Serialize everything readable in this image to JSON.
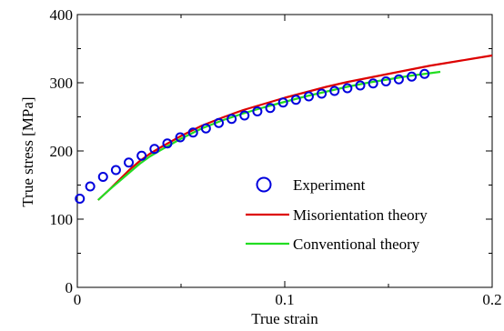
{
  "chart_data": {
    "type": "line",
    "title": "",
    "xlabel": "True strain",
    "ylabel": "True stress [MPa]",
    "xlim": [
      0,
      0.2
    ],
    "ylim": [
      0,
      400
    ],
    "x_ticks": [
      0,
      0.1,
      0.2
    ],
    "x_tick_labels": [
      "0",
      "0.1",
      "0.2"
    ],
    "y_ticks": [
      0,
      100,
      200,
      300,
      400
    ],
    "y_tick_labels": [
      "0",
      "100",
      "200",
      "300",
      "400"
    ],
    "grid": false,
    "legend_placement": "lower-right",
    "series": [
      {
        "name": "Experiment",
        "kind": "scatter",
        "marker": "open-circle",
        "color": "#0000dd",
        "x": [
          0.0012,
          0.0062,
          0.0124,
          0.0186,
          0.0248,
          0.031,
          0.0372,
          0.0434,
          0.0496,
          0.0558,
          0.062,
          0.0682,
          0.0744,
          0.0806,
          0.0868,
          0.093,
          0.0992,
          0.1054,
          0.1116,
          0.1178,
          0.124,
          0.1302,
          0.1364,
          0.1426,
          0.1488,
          0.155,
          0.1612,
          0.1674
        ],
        "y": [
          130,
          148,
          162,
          172,
          183,
          193,
          203,
          211,
          220,
          227,
          233,
          241,
          247,
          252,
          258,
          263,
          271,
          275,
          280,
          284,
          288,
          292,
          296,
          299,
          302,
          305,
          309,
          313
        ]
      },
      {
        "name": "Misorientation theory",
        "kind": "line",
        "color": "#dd0000",
        "x": [
          0.01,
          0.015,
          0.02,
          0.025,
          0.03,
          0.035,
          0.04,
          0.05,
          0.06,
          0.07,
          0.08,
          0.09,
          0.1,
          0.11,
          0.12,
          0.13,
          0.14,
          0.15,
          0.16,
          0.17,
          0.18,
          0.19,
          0.2
        ],
        "y": [
          128,
          142,
          157,
          172,
          185,
          196,
          205,
          222,
          237,
          249,
          260,
          269,
          278,
          286,
          294,
          301,
          307,
          313,
          319,
          325,
          330,
          335,
          340
        ]
      },
      {
        "name": "Conventional theory",
        "kind": "line",
        "color": "#22dd22",
        "x": [
          0.01,
          0.015,
          0.02,
          0.025,
          0.03,
          0.035,
          0.04,
          0.05,
          0.06,
          0.07,
          0.08,
          0.09,
          0.1,
          0.11,
          0.12,
          0.13,
          0.14,
          0.15,
          0.16,
          0.17,
          0.175
        ],
        "y": [
          128,
          142,
          155,
          168,
          181,
          192,
          201,
          218,
          233,
          245,
          255,
          264,
          272,
          280,
          287,
          294,
          300,
          305,
          310,
          314,
          316
        ]
      }
    ]
  }
}
